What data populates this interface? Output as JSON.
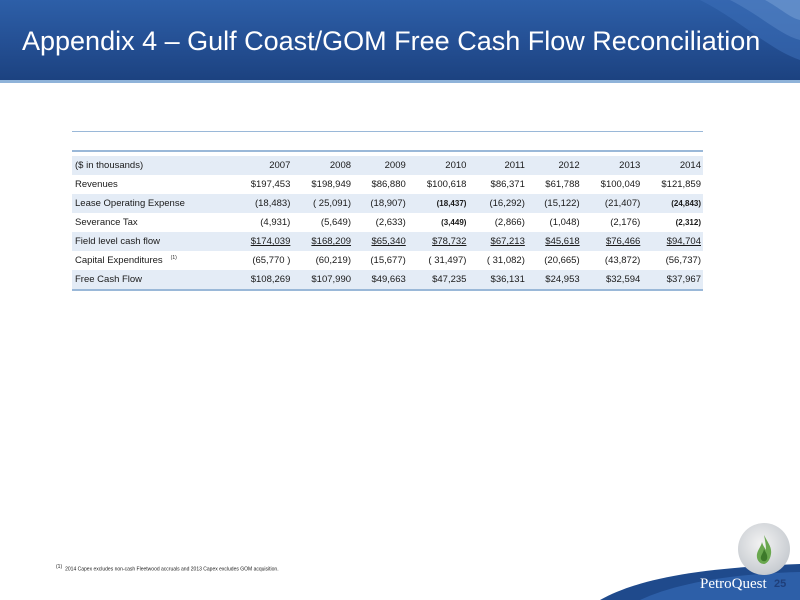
{
  "slide": {
    "title": "Appendix 4 – Gulf Coast/GOM Free Cash Flow Reconciliation",
    "page_number": "25",
    "brand": "PetroQuest"
  },
  "table": {
    "unit_label": "($ in thousands)",
    "years": [
      "2007",
      "2008",
      "2009",
      "2010",
      "2011",
      "2012",
      "2013",
      "2014"
    ],
    "rows": [
      {
        "label": "Revenues",
        "values": [
          "$197,453",
          "$198,949",
          "$86,880",
          "$100,618",
          "$86,371",
          "$61,788",
          "$100,049",
          "$121,859"
        ]
      },
      {
        "label": "Lease Operating Expense",
        "values": [
          "(18,483)",
          "( 25,091)",
          "(18,907)",
          "(18,437)",
          "(16,292)",
          "(15,122)",
          "(21,407)",
          "(24,843)"
        ]
      },
      {
        "label": "Severance Tax",
        "values": [
          "(4,931)",
          "(5,649)",
          "(2,633)",
          "(3,449)",
          "(2,866)",
          "(1,048)",
          "(2,176)",
          "(2,312)"
        ]
      },
      {
        "label": "Field level cash flow",
        "values": [
          "$174,039",
          "$168,209",
          "$65,340",
          "$78,732",
          "$67,213",
          "$45,618",
          "$76,466",
          "$94,704"
        ]
      },
      {
        "label": "Capital Expenditures",
        "footnote_marker": "(1)",
        "values": [
          "(65,770 )",
          "(60,219)",
          "(15,677)",
          "( 31,497)",
          "( 31,082)",
          "(20,665)",
          "(43,872)",
          "(56,737)"
        ]
      },
      {
        "label": "Free Cash Flow",
        "values": [
          "$108,269",
          "$107,990",
          "$49,663",
          "$47,235",
          "$36,131",
          "$24,953",
          "$32,594",
          "$37,967"
        ]
      }
    ]
  },
  "footnote": {
    "marker": "(1)",
    "text": "2014 Capex excludes non-cash Fleetwood accruals and 2013 Capex excludes GOM acquisition."
  },
  "colors": {
    "header_blue": "#244f93",
    "row_shade": "#e4ecf6",
    "rule_blue": "#9ab8d8"
  }
}
